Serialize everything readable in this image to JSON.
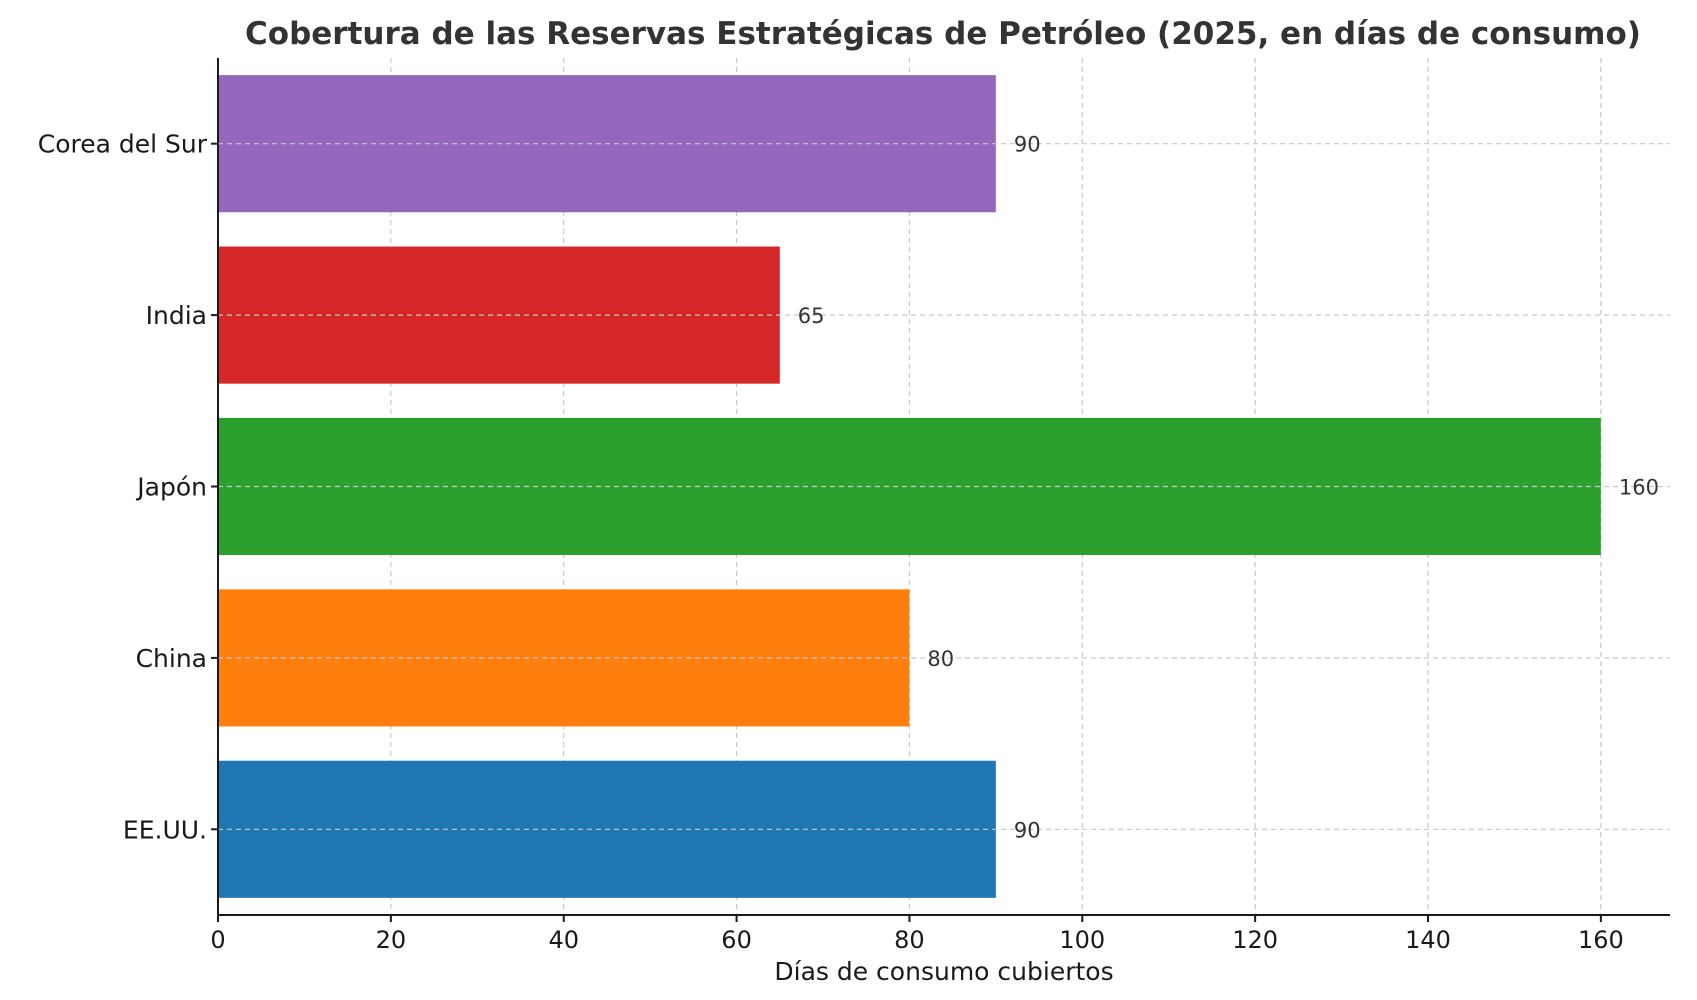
{
  "chart_data": {
    "type": "bar",
    "orientation": "horizontal",
    "title": "Cobertura de las Reservas Estratégicas de Petróleo (2025, en días de consumo)",
    "xlabel": "Días de consumo cubiertos",
    "ylabel": "",
    "categories": [
      "EE.UU.",
      "China",
      "Japón",
      "India",
      "Corea del Sur"
    ],
    "values": [
      90,
      80,
      160,
      65,
      90
    ],
    "data_labels": [
      "90",
      "80",
      "160",
      "65",
      "90"
    ],
    "colors": [
      "#1f77b4",
      "#ff7f0e",
      "#2ca02c",
      "#d62728",
      "#9467bd"
    ],
    "xlim": [
      0,
      168
    ],
    "xticks": [
      0,
      20,
      40,
      60,
      80,
      100,
      120,
      140,
      160
    ],
    "grid": true,
    "legend": "none"
  }
}
